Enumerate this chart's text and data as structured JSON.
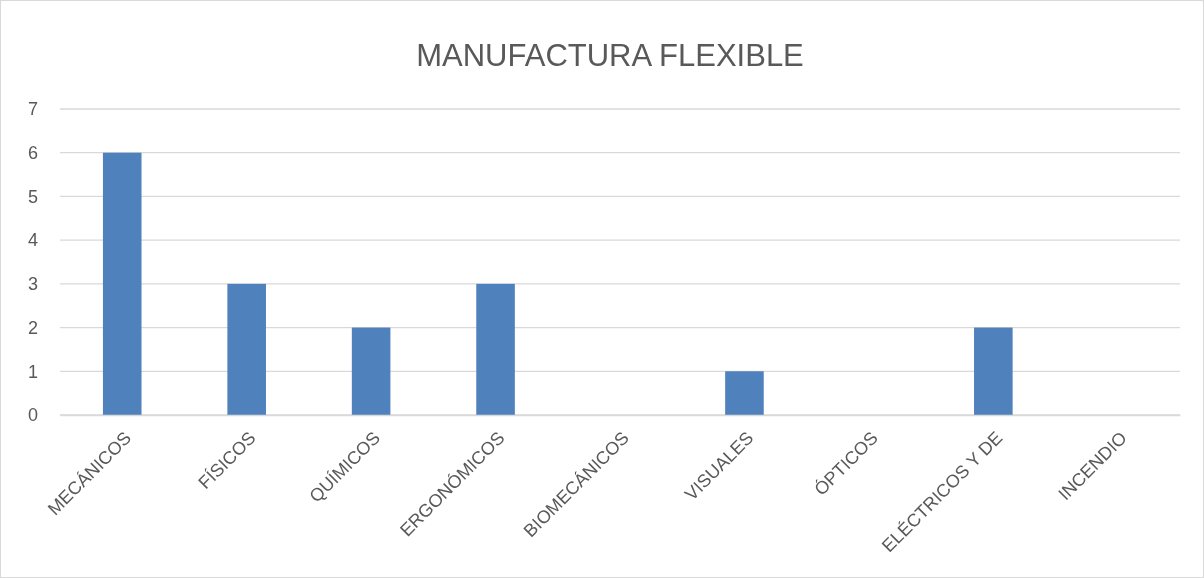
{
  "chart_data": {
    "type": "bar",
    "title": "MANUFACTURA FLEXIBLE",
    "categories": [
      "MECÁNICOS",
      "FÍSICOS",
      "QUÍMICOS",
      "ERGONÓMICOS",
      "BIOMECÁNICOS",
      "VISUALES",
      "ÓPTICOS",
      "ELÉCTRICOS Y DE",
      "INCENDIO"
    ],
    "values": [
      6,
      3,
      2,
      3,
      0,
      1,
      0,
      2,
      0
    ],
    "color": "#4f81bd",
    "ylim": [
      0,
      7
    ],
    "yticks": [
      0,
      1,
      2,
      3,
      4,
      5,
      6,
      7
    ],
    "grid": "y"
  }
}
